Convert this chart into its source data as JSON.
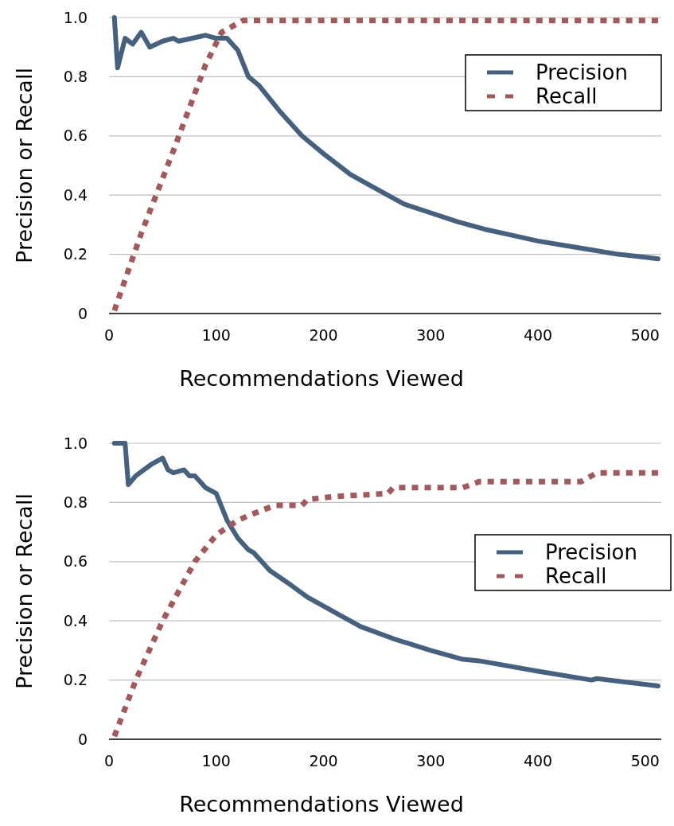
{
  "chart_data": [
    {
      "type": "line",
      "xlabel": "Recommendations Viewed",
      "ylabel": "Precision or Recall",
      "xlim": [
        0,
        515
      ],
      "xticks": [
        0,
        100,
        200,
        300,
        400,
        500
      ],
      "ylim": [
        0,
        1
      ],
      "yticks": [
        0,
        0.2,
        0.4,
        0.6,
        0.8,
        {
          "value": 1,
          "label": "1.0"
        }
      ],
      "grid": "y",
      "legend": "top right",
      "marker": "none",
      "series": [
        {
          "name": "Precision",
          "color": "#45617e",
          "line_style": "solid",
          "x": [
            5,
            8,
            15,
            22,
            30,
            38,
            50,
            60,
            65,
            90,
            100,
            110,
            120,
            130,
            140,
            160,
            180,
            200,
            225,
            250,
            275,
            300,
            325,
            350,
            375,
            400,
            425,
            450,
            475,
            500,
            512
          ],
          "values": [
            1.0,
            0.83,
            0.93,
            0.91,
            0.95,
            0.9,
            0.92,
            0.93,
            0.92,
            0.94,
            0.93,
            0.93,
            0.89,
            0.8,
            0.77,
            0.68,
            0.6,
            0.54,
            0.47,
            0.42,
            0.37,
            0.34,
            0.31,
            0.285,
            0.265,
            0.245,
            0.23,
            0.215,
            0.2,
            0.19,
            0.185
          ]
        },
        {
          "name": "Recall",
          "color": "#a05a5c",
          "line_style": "dotted",
          "x": [
            5,
            30,
            60,
            90,
            105,
            115,
            125,
            512
          ],
          "values": [
            0.01,
            0.27,
            0.55,
            0.84,
            0.95,
            0.97,
            0.99,
            0.99
          ]
        }
      ]
    },
    {
      "type": "line",
      "xlabel": "Recommendations Viewed",
      "ylabel": "Precision or Recall",
      "xlim": [
        0,
        515
      ],
      "xticks": [
        0,
        100,
        200,
        300,
        400,
        500
      ],
      "ylim": [
        0,
        1
      ],
      "yticks": [
        0,
        0.2,
        0.4,
        0.6,
        0.8,
        {
          "value": 1,
          "label": "1.0"
        }
      ],
      "grid": "y",
      "legend": "right",
      "marker": "none",
      "series": [
        {
          "name": "Precision",
          "color": "#45617e",
          "line_style": "solid",
          "x": [
            5,
            15,
            18,
            25,
            40,
            50,
            55,
            60,
            70,
            75,
            80,
            90,
            100,
            110,
            120,
            130,
            135,
            150,
            170,
            185,
            200,
            215,
            235,
            265,
            300,
            330,
            345,
            400,
            450,
            455,
            512
          ],
          "values": [
            1.0,
            1.0,
            0.86,
            0.89,
            0.93,
            0.95,
            0.91,
            0.9,
            0.91,
            0.89,
            0.89,
            0.85,
            0.83,
            0.74,
            0.68,
            0.64,
            0.63,
            0.57,
            0.52,
            0.48,
            0.45,
            0.42,
            0.38,
            0.34,
            0.3,
            0.27,
            0.265,
            0.23,
            0.2,
            0.205,
            0.18
          ]
        },
        {
          "name": "Recall",
          "color": "#a05a5c",
          "line_style": "dotted",
          "x": [
            5,
            25,
            50,
            65,
            80,
            100,
            120,
            140,
            155,
            180,
            185,
            210,
            260,
            265,
            330,
            345,
            440,
            455,
            512
          ],
          "values": [
            0.01,
            0.2,
            0.4,
            0.5,
            0.6,
            0.69,
            0.74,
            0.77,
            0.79,
            0.79,
            0.81,
            0.82,
            0.83,
            0.85,
            0.85,
            0.87,
            0.87,
            0.9,
            0.9
          ]
        }
      ]
    }
  ]
}
